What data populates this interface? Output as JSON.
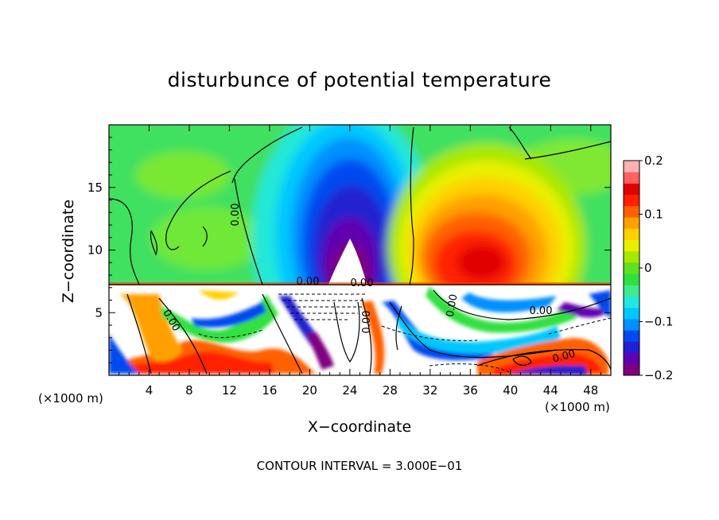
{
  "chart_data": {
    "type": "heatmap",
    "title": "disturbunce of potential temperature",
    "xlabel": "X−coordinate",
    "ylabel": "Z−coordinate",
    "x_unit": "(×1000 m)",
    "z_unit": "(×1000 m)",
    "footer": "CONTOUR INTERVAL = 3.000E−01",
    "xlim": [
      0,
      50
    ],
    "zlim": [
      0,
      20
    ],
    "x_ticks": [
      4,
      8,
      12,
      16,
      20,
      24,
      28,
      32,
      36,
      40,
      44,
      48
    ],
    "z_ticks": [
      5,
      10,
      15
    ],
    "colorbar": {
      "range": [
        -0.2,
        0.2
      ],
      "ticks": [
        0.2,
        0.1,
        0,
        -0.1,
        -0.2
      ],
      "tick_labels": [
        "0.2",
        "0.1",
        "0",
        "−0.1",
        "−0.2"
      ],
      "colors": [
        "#800080",
        "#6000b0",
        "#2020d0",
        "#0048f0",
        "#0090ff",
        "#00c8ff",
        "#20e8e0",
        "#40e890",
        "#30e040",
        "#60e020",
        "#a8e800",
        "#e8f000",
        "#ffd000",
        "#ffa000",
        "#ff6000",
        "#ff2000",
        "#e00000",
        "#ff6060",
        "#ffb0b0"
      ]
    },
    "contour_labels": [
      "0.00",
      "0.00",
      "0.00",
      "0.00",
      "0.00",
      "0.00",
      "0.00",
      "0.00"
    ],
    "features": [
      {
        "kind": "negative anomaly",
        "x_center": 24,
        "z_top": 18,
        "value": -0.2
      },
      {
        "kind": "positive anomaly",
        "x_center": 38,
        "z_top": 16,
        "value": 0.13
      },
      {
        "kind": "background",
        "z_range": [
          7.5,
          20
        ],
        "value": 0.02
      }
    ]
  }
}
